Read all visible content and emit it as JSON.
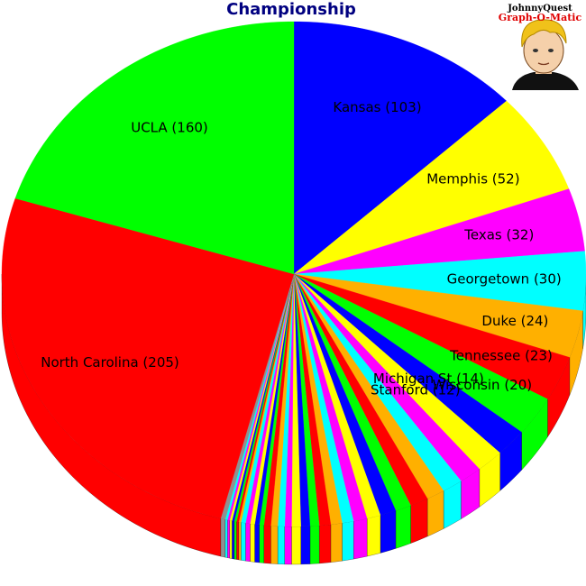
{
  "chart_data": {
    "type": "pie",
    "title": "Championship",
    "view": "3d-tilted",
    "labeled_slices": [
      {
        "name": "Kansas",
        "value": 103,
        "label": "Kansas (103)",
        "color": "#0000ff"
      },
      {
        "name": "Memphis",
        "value": 52,
        "label": "Memphis (52)",
        "color": "#ffff00"
      },
      {
        "name": "Texas",
        "value": 32,
        "label": "Texas (32)",
        "color": "#ff00ff"
      },
      {
        "name": "Georgetown",
        "value": 30,
        "label": "Georgetown (30)",
        "color": "#00ffff"
      },
      {
        "name": "Duke",
        "value": 24,
        "label": "Duke (24)",
        "color": "#ffb000"
      },
      {
        "name": "Tennessee",
        "value": 23,
        "label": "Tennessee (23)",
        "color": "#ff0000"
      },
      {
        "name": "Wisconsin",
        "value": 20,
        "label": "Wisconsin (20)",
        "color": "#00ff00"
      },
      {
        "name": "Michigan St",
        "value": 14,
        "label": "Michigan St (14)",
        "color": "#0000ff"
      },
      {
        "name": "Stanford",
        "value": 12,
        "label": "Stanford (12)",
        "color": "#ffff00"
      }
    ],
    "small_slices": {
      "values": [
        10,
        9,
        8,
        8,
        7,
        7,
        6,
        6,
        5,
        5,
        5,
        4,
        4,
        4,
        3,
        3,
        3,
        3,
        2,
        2,
        2,
        2,
        2,
        1,
        1,
        1,
        1,
        1,
        1,
        1
      ],
      "color_cycle": [
        "#ff00ff",
        "#00ffff",
        "#ffb000",
        "#ff0000",
        "#00ff00",
        "#0000ff",
        "#ffff00"
      ]
    },
    "tail_slice": {
      "value": 2,
      "color": "#909090"
    },
    "major_slices": [
      {
        "name": "North Carolina",
        "value": 205,
        "label": "North Carolina (205)",
        "color": "#ff0000"
      },
      {
        "name": "UCLA",
        "value": 160,
        "label": "UCLA (160)",
        "color": "#00ff00"
      }
    ]
  },
  "logo": {
    "line1": "JohnnyQuest",
    "line2": "Graph-O-Matic"
  }
}
